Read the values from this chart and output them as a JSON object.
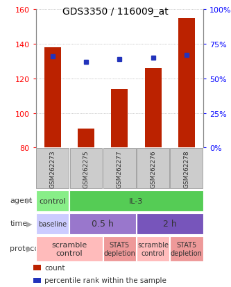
{
  "title": "GDS3350 / 116009_at",
  "samples": [
    "GSM262273",
    "GSM262275",
    "GSM262277",
    "GSM262276",
    "GSM262278"
  ],
  "bar_bottoms": [
    80,
    80,
    80,
    80,
    80
  ],
  "bar_tops": [
    138,
    91,
    114,
    126,
    155
  ],
  "percentile_ranks": [
    66,
    62,
    64,
    65,
    67
  ],
  "ylim_left": [
    80,
    160
  ],
  "ylim_right": [
    0,
    100
  ],
  "yticks_left": [
    80,
    100,
    120,
    140,
    160
  ],
  "yticks_right": [
    0,
    25,
    50,
    75,
    100
  ],
  "bar_color": "#bb2200",
  "dot_color": "#2233bb",
  "grid_color": "#999999",
  "sample_box_color": "#cccccc",
  "sample_box_edge": "#999999",
  "annotation_rows": [
    {
      "label": "agent",
      "cells": [
        {
          "text": "control",
          "colspan": 1,
          "color": "#88ee88"
        },
        {
          "text": "IL-3",
          "colspan": 4,
          "color": "#55cc55"
        }
      ]
    },
    {
      "label": "time",
      "cells": [
        {
          "text": "baseline",
          "colspan": 1,
          "color": "#ccccff",
          "fontsize": 7
        },
        {
          "text": "0.5 h",
          "colspan": 2,
          "color": "#9977cc",
          "fontsize": 9
        },
        {
          "text": "2 h",
          "colspan": 2,
          "color": "#7755bb",
          "fontsize": 9
        }
      ]
    },
    {
      "label": "protocol",
      "cells": [
        {
          "text": "scramble\ncontrol",
          "colspan": 2,
          "color": "#ffbbbb",
          "fontsize": 8
        },
        {
          "text": "STAT5\ndepletion",
          "colspan": 1,
          "color": "#ee9999",
          "fontsize": 7
        },
        {
          "text": "scramble\ncontrol",
          "colspan": 1,
          "color": "#ffbbbb",
          "fontsize": 7
        },
        {
          "text": "STAT5\ndepletion",
          "colspan": 1,
          "color": "#ee9999",
          "fontsize": 7
        }
      ]
    }
  ],
  "legend_items": [
    {
      "label": "count",
      "color": "#bb2200"
    },
    {
      "label": "percentile rank within the sample",
      "color": "#2233bb"
    }
  ],
  "fig_width": 3.33,
  "fig_height": 4.14,
  "dpi": 100
}
